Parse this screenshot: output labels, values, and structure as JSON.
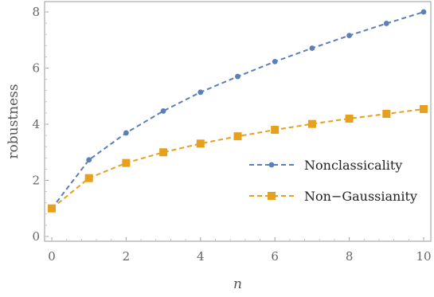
{
  "chart_data": {
    "type": "line",
    "xlabel": "n",
    "ylabel": "robustness",
    "xlim": [
      0,
      10
    ],
    "ylim": [
      0,
      8.3
    ],
    "x_ticks": [
      0,
      2,
      4,
      6,
      8,
      10
    ],
    "y_ticks": [
      0,
      2,
      4,
      6,
      8
    ],
    "x": [
      0,
      1,
      2,
      3,
      4,
      5,
      6,
      7,
      8,
      9,
      10
    ],
    "series": [
      {
        "name": "Nonclassicality",
        "color": "#5b7fb8",
        "marker": "circle",
        "values": [
          1.0,
          2.73,
          3.69,
          4.47,
          5.14,
          5.7,
          6.23,
          6.71,
          7.16,
          7.59,
          8.0
        ]
      },
      {
        "name": "Non−Gaussianity",
        "color": "#e6a01e",
        "marker": "square",
        "values": [
          1.0,
          2.08,
          2.62,
          3.0,
          3.31,
          3.57,
          3.8,
          4.01,
          4.2,
          4.37,
          4.54
        ]
      }
    ],
    "legend_position": "right-middle",
    "grid": false
  }
}
